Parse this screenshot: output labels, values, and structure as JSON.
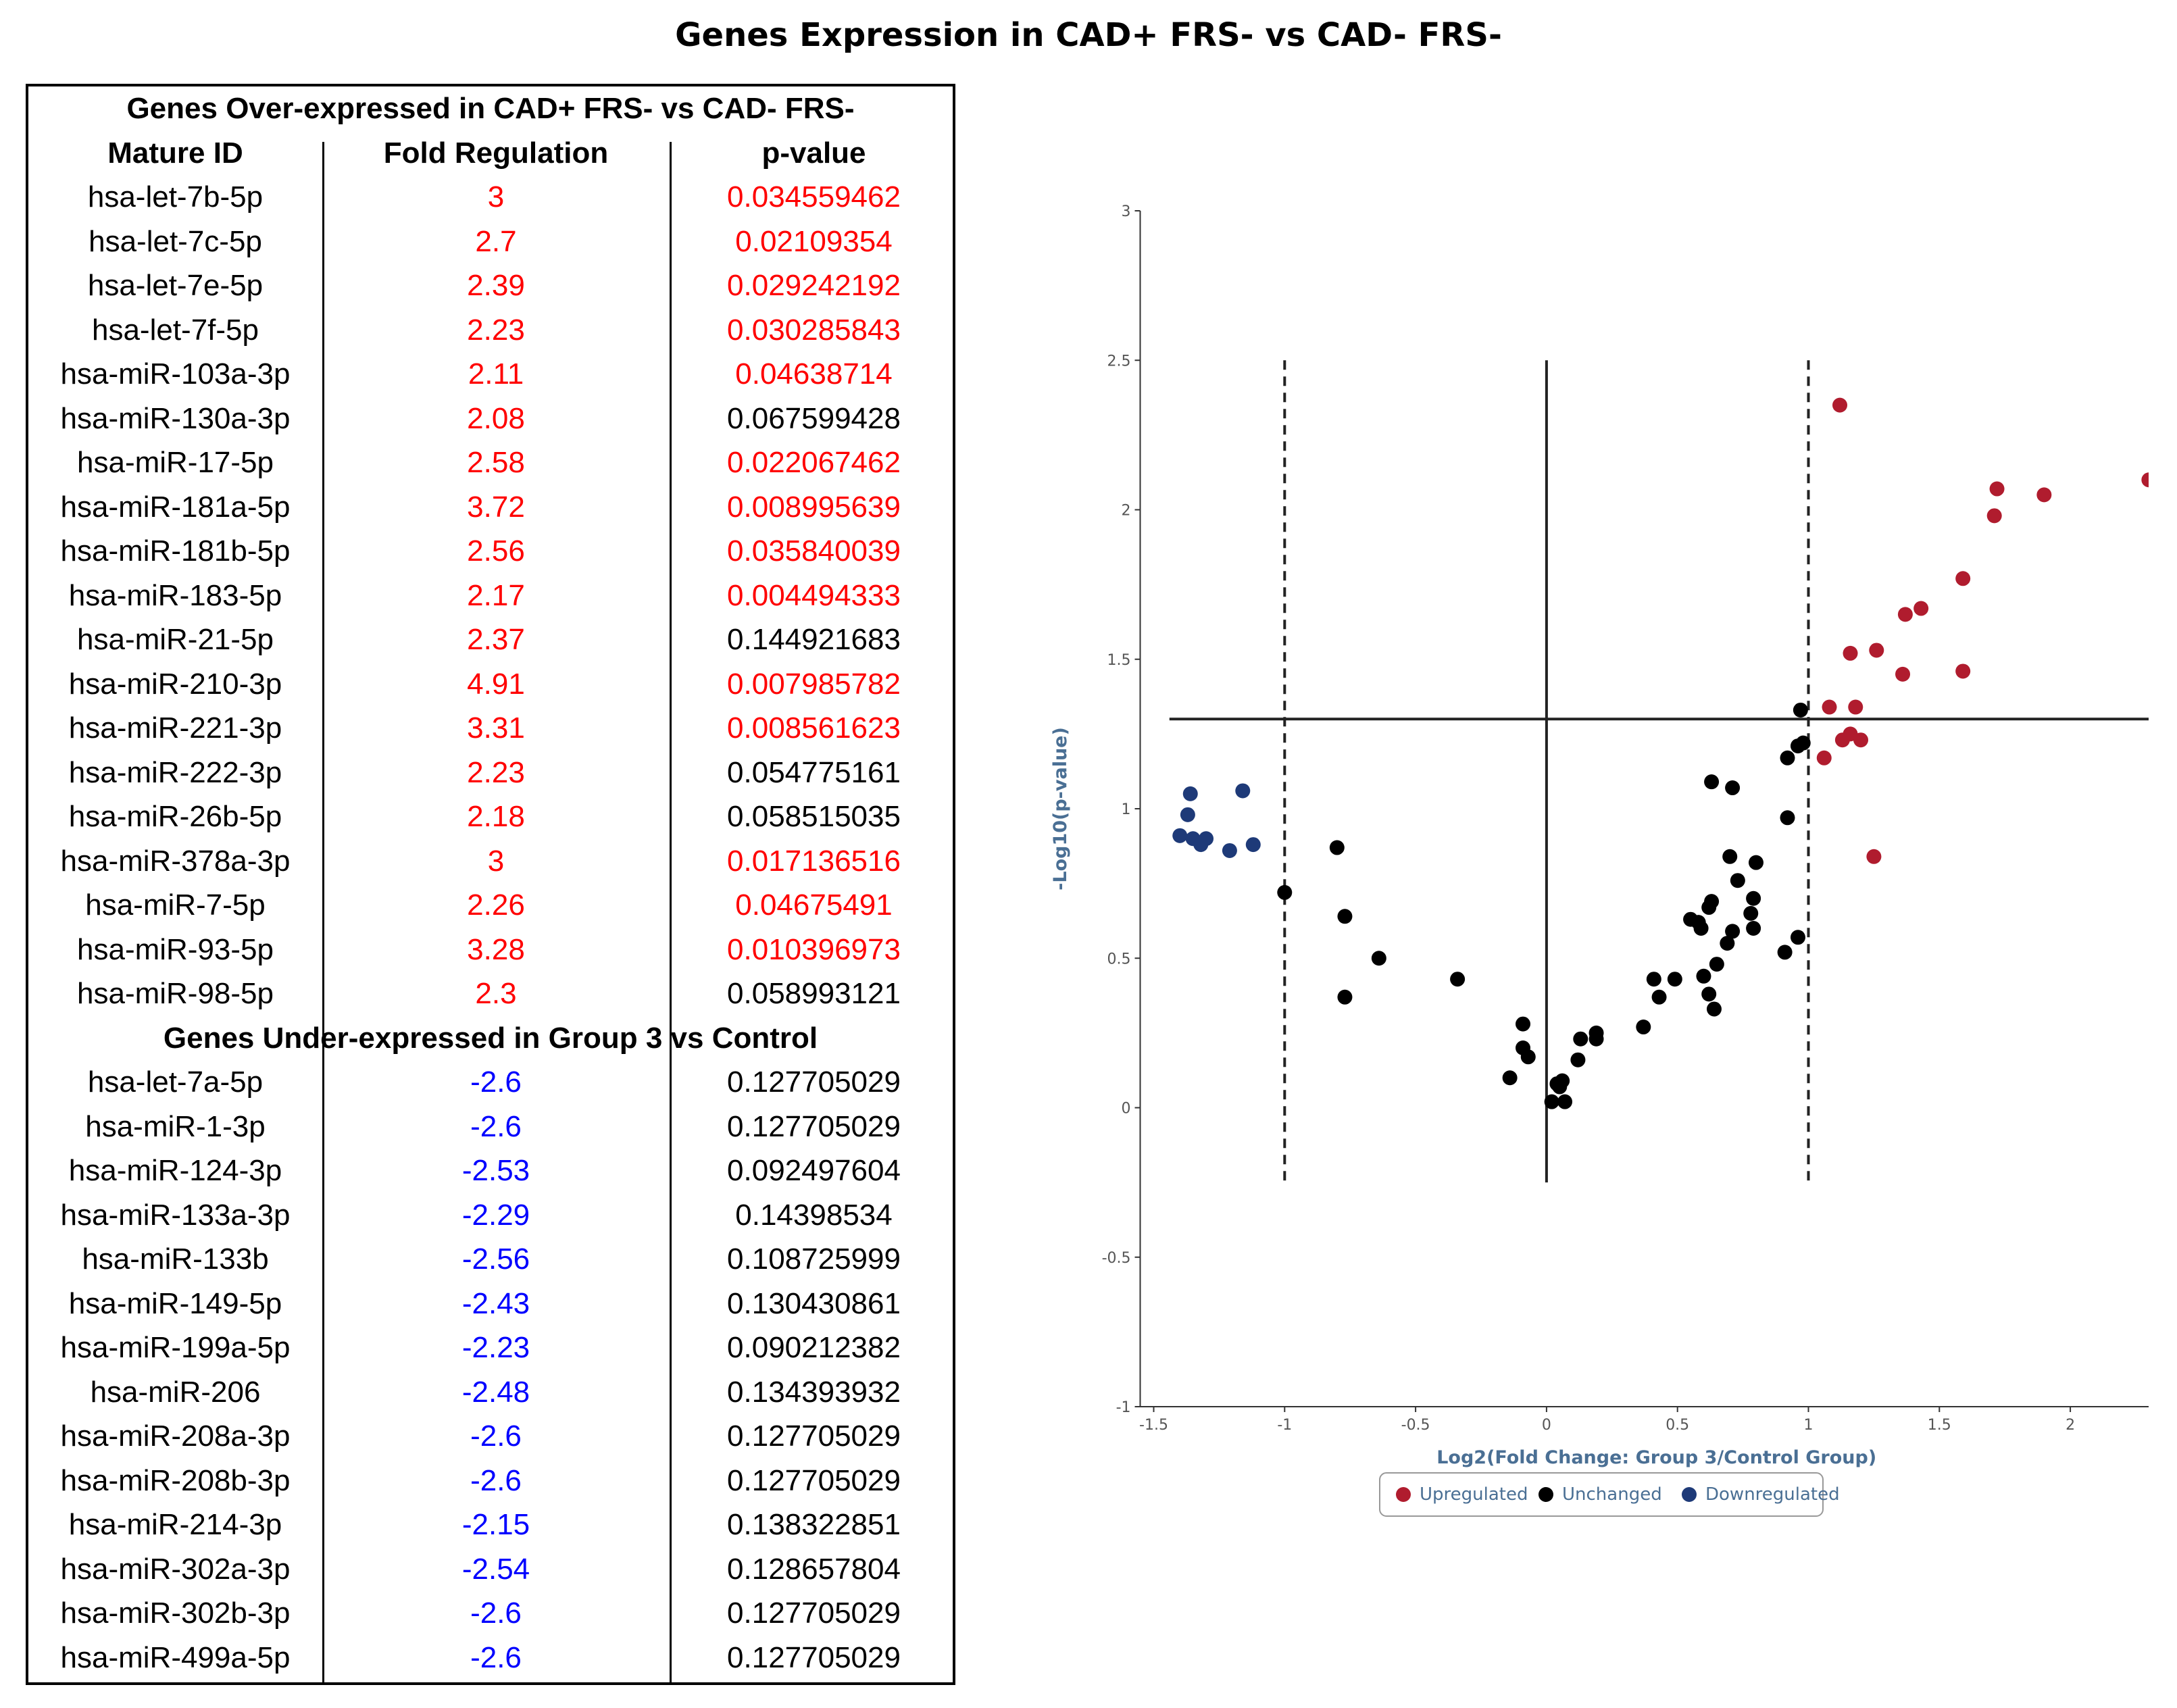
{
  "page_title": "Genes Expression in CAD+ FRS- vs CAD- FRS-",
  "table": {
    "over_title": "Genes Over-expressed in CAD+ FRS- vs CAD- FRS-",
    "headers": [
      "Mature ID",
      "Fold Regulation",
      "p-value"
    ],
    "over_rows": [
      {
        "id": "hsa-let-7b-5p",
        "fold": "3",
        "p": "0.034559462",
        "sig": true
      },
      {
        "id": "hsa-let-7c-5p",
        "fold": "2.7",
        "p": "0.02109354",
        "sig": true
      },
      {
        "id": "hsa-let-7e-5p",
        "fold": "2.39",
        "p": "0.029242192",
        "sig": true
      },
      {
        "id": "hsa-let-7f-5p",
        "fold": "2.23",
        "p": "0.030285843",
        "sig": true
      },
      {
        "id": "hsa-miR-103a-3p",
        "fold": "2.11",
        "p": "0.04638714",
        "sig": true
      },
      {
        "id": "hsa-miR-130a-3p",
        "fold": "2.08",
        "p": "0.067599428",
        "sig": false
      },
      {
        "id": "hsa-miR-17-5p",
        "fold": "2.58",
        "p": "0.022067462",
        "sig": true
      },
      {
        "id": "hsa-miR-181a-5p",
        "fold": "3.72",
        "p": "0.008995639",
        "sig": true
      },
      {
        "id": "hsa-miR-181b-5p",
        "fold": "2.56",
        "p": "0.035840039",
        "sig": true
      },
      {
        "id": "hsa-miR-183-5p",
        "fold": "2.17",
        "p": "0.004494333",
        "sig": true
      },
      {
        "id": "hsa-miR-21-5p",
        "fold": "2.37",
        "p": "0.144921683",
        "sig": false
      },
      {
        "id": "hsa-miR-210-3p",
        "fold": "4.91",
        "p": "0.007985782",
        "sig": true
      },
      {
        "id": "hsa-miR-221-3p",
        "fold": "3.31",
        "p": "0.008561623",
        "sig": true
      },
      {
        "id": "hsa-miR-222-3p",
        "fold": "2.23",
        "p": "0.054775161",
        "sig": false
      },
      {
        "id": "hsa-miR-26b-5p",
        "fold": "2.18",
        "p": "0.058515035",
        "sig": false
      },
      {
        "id": "hsa-miR-378a-3p",
        "fold": "3",
        "p": "0.017136516",
        "sig": true
      },
      {
        "id": "hsa-miR-7-5p",
        "fold": "2.26",
        "p": "0.04675491",
        "sig": true
      },
      {
        "id": "hsa-miR-93-5p",
        "fold": "3.28",
        "p": "0.010396973",
        "sig": true
      },
      {
        "id": "hsa-miR-98-5p",
        "fold": "2.3",
        "p": "0.058993121",
        "sig": false
      }
    ],
    "under_title": "Genes Under-expressed in Group 3 vs Control",
    "under_rows": [
      {
        "id": "hsa-let-7a-5p",
        "fold": "-2.6",
        "p": "0.127705029"
      },
      {
        "id": "hsa-miR-1-3p",
        "fold": "-2.6",
        "p": "0.127705029"
      },
      {
        "id": "hsa-miR-124-3p",
        "fold": "-2.53",
        "p": "0.092497604"
      },
      {
        "id": "hsa-miR-133a-3p",
        "fold": "-2.29",
        "p": "0.14398534"
      },
      {
        "id": "hsa-miR-133b",
        "fold": "-2.56",
        "p": "0.108725999"
      },
      {
        "id": "hsa-miR-149-5p",
        "fold": "-2.43",
        "p": "0.130430861"
      },
      {
        "id": "hsa-miR-199a-5p",
        "fold": "-2.23",
        "p": "0.090212382"
      },
      {
        "id": "hsa-miR-206",
        "fold": "-2.48",
        "p": "0.134393932"
      },
      {
        "id": "hsa-miR-208a-3p",
        "fold": "-2.6",
        "p": "0.127705029"
      },
      {
        "id": "hsa-miR-208b-3p",
        "fold": "-2.6",
        "p": "0.127705029"
      },
      {
        "id": "hsa-miR-214-3p",
        "fold": "-2.15",
        "p": "0.138322851"
      },
      {
        "id": "hsa-miR-302a-3p",
        "fold": "-2.54",
        "p": "0.128657804"
      },
      {
        "id": "hsa-miR-302b-3p",
        "fold": "-2.6",
        "p": "0.127705029"
      },
      {
        "id": "hsa-miR-499a-5p",
        "fold": "-2.6",
        "p": "0.127705029"
      }
    ]
  },
  "colors": {
    "red": "#ff0000",
    "blue": "#0000ff",
    "up": "#b01c2e",
    "unchanged": "#000000",
    "down": "#1e3a78",
    "axis_label": "#4a6f94"
  },
  "chart_data": {
    "type": "scatter",
    "title": "",
    "xlabel": "Log2(Fold Change: Group 3/Control Group)",
    "ylabel": "-Log10(p-value)",
    "xlim": [
      -1.5,
      2.3
    ],
    "ylim": [
      -1,
      3
    ],
    "xticks": [
      "-1.5",
      "-1",
      "-0.5",
      "0",
      "0.5",
      "1",
      "1.5",
      "2"
    ],
    "yticks": [
      "-1",
      "-0.5",
      "0",
      "0.5",
      "1",
      "1.5",
      "2",
      "2.5",
      "3"
    ],
    "thresholds": {
      "fold_lines": [
        -1,
        1
      ],
      "p_line": 1.3
    },
    "legend": [
      "Upregulated",
      "Unchanged",
      "Downregulated"
    ],
    "series": [
      {
        "name": "Upregulated",
        "points": [
          [
            1.12,
            2.35
          ],
          [
            2.3,
            2.1
          ],
          [
            1.72,
            2.07
          ],
          [
            1.9,
            2.05
          ],
          [
            1.71,
            1.98
          ],
          [
            1.59,
            1.77
          ],
          [
            1.43,
            1.67
          ],
          [
            1.37,
            1.65
          ],
          [
            1.26,
            1.53
          ],
          [
            1.16,
            1.52
          ],
          [
            1.36,
            1.45
          ],
          [
            1.59,
            1.46
          ],
          [
            1.08,
            1.34
          ],
          [
            1.18,
            1.34
          ],
          [
            1.13,
            1.23
          ],
          [
            1.16,
            1.25
          ],
          [
            1.2,
            1.23
          ],
          [
            1.06,
            1.17
          ],
          [
            1.25,
            0.84
          ]
        ]
      },
      {
        "name": "Unchanged",
        "points": [
          [
            0.97,
            1.33
          ],
          [
            0.96,
            1.21
          ],
          [
            0.98,
            1.22
          ],
          [
            0.92,
            1.17
          ],
          [
            0.63,
            1.09
          ],
          [
            0.71,
            1.07
          ],
          [
            0.92,
            0.97
          ],
          [
            -0.8,
            0.87
          ],
          [
            0.7,
            0.84
          ],
          [
            0.8,
            0.82
          ],
          [
            0.73,
            0.76
          ],
          [
            -1.0,
            0.72
          ],
          [
            0.63,
            0.69
          ],
          [
            0.79,
            0.7
          ],
          [
            0.62,
            0.67
          ],
          [
            0.78,
            0.65
          ],
          [
            -0.77,
            0.64
          ],
          [
            0.55,
            0.63
          ],
          [
            0.58,
            0.62
          ],
          [
            0.59,
            0.6
          ],
          [
            0.79,
            0.6
          ],
          [
            0.71,
            0.59
          ],
          [
            0.69,
            0.55
          ],
          [
            0.96,
            0.57
          ],
          [
            0.91,
            0.52
          ],
          [
            -0.64,
            0.5
          ],
          [
            0.65,
            0.48
          ],
          [
            -0.34,
            0.43
          ],
          [
            0.41,
            0.43
          ],
          [
            0.49,
            0.43
          ],
          [
            0.6,
            0.44
          ],
          [
            0.62,
            0.38
          ],
          [
            0.43,
            0.37
          ],
          [
            -0.77,
            0.37
          ],
          [
            0.64,
            0.33
          ],
          [
            -0.09,
            0.28
          ],
          [
            0.37,
            0.27
          ],
          [
            0.19,
            0.25
          ],
          [
            0.19,
            0.23
          ],
          [
            0.13,
            0.23
          ],
          [
            -0.09,
            0.2
          ],
          [
            -0.07,
            0.17
          ],
          [
            0.12,
            0.16
          ],
          [
            -0.14,
            0.1
          ],
          [
            0.06,
            0.09
          ],
          [
            0.04,
            0.08
          ],
          [
            0.05,
            0.07
          ],
          [
            0.02,
            0.02
          ],
          [
            0.07,
            0.02
          ]
        ]
      },
      {
        "name": "Downregulated",
        "points": [
          [
            -1.36,
            1.05
          ],
          [
            -1.16,
            1.06
          ],
          [
            -1.37,
            0.98
          ],
          [
            -1.4,
            0.91
          ],
          [
            -1.35,
            0.9
          ],
          [
            -1.32,
            0.88
          ],
          [
            -1.3,
            0.9
          ],
          [
            -1.21,
            0.86
          ],
          [
            -1.12,
            0.88
          ]
        ]
      }
    ]
  }
}
